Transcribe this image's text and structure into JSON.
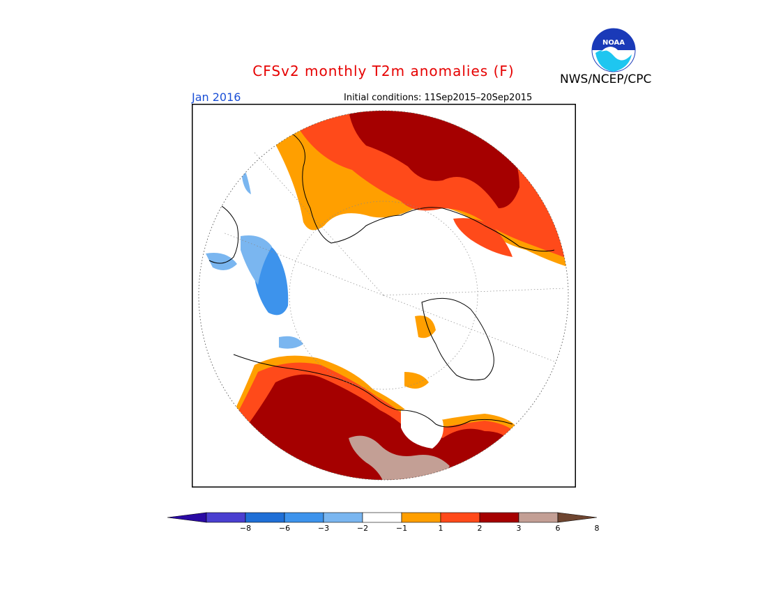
{
  "title": "CFSv2 monthly T2m anomalies (F)",
  "valid_month": "Jan 2016",
  "initial_conditions": "Initial conditions: 11Sep2015–20Sep2015",
  "agency": "NWS/NCEP/CPC",
  "logo_text": "NOAA",
  "colors": {
    "title": "#e60000",
    "month": "#1a4fd6",
    "land_outline": "#000000",
    "bins": [
      "#2a0aa3",
      "#4a3fd0",
      "#1f6fd6",
      "#3d93ec",
      "#7ab6f0",
      "#ffffff",
      "#ff9f00",
      "#ff4a1a",
      "#a50000",
      "#c39f95",
      "#6e4530"
    ]
  },
  "colorbar": {
    "tick_labels": [
      "−8",
      "−6",
      "−3",
      "−2",
      "−1",
      "1",
      "2",
      "3",
      "6",
      "8"
    ]
  }
}
